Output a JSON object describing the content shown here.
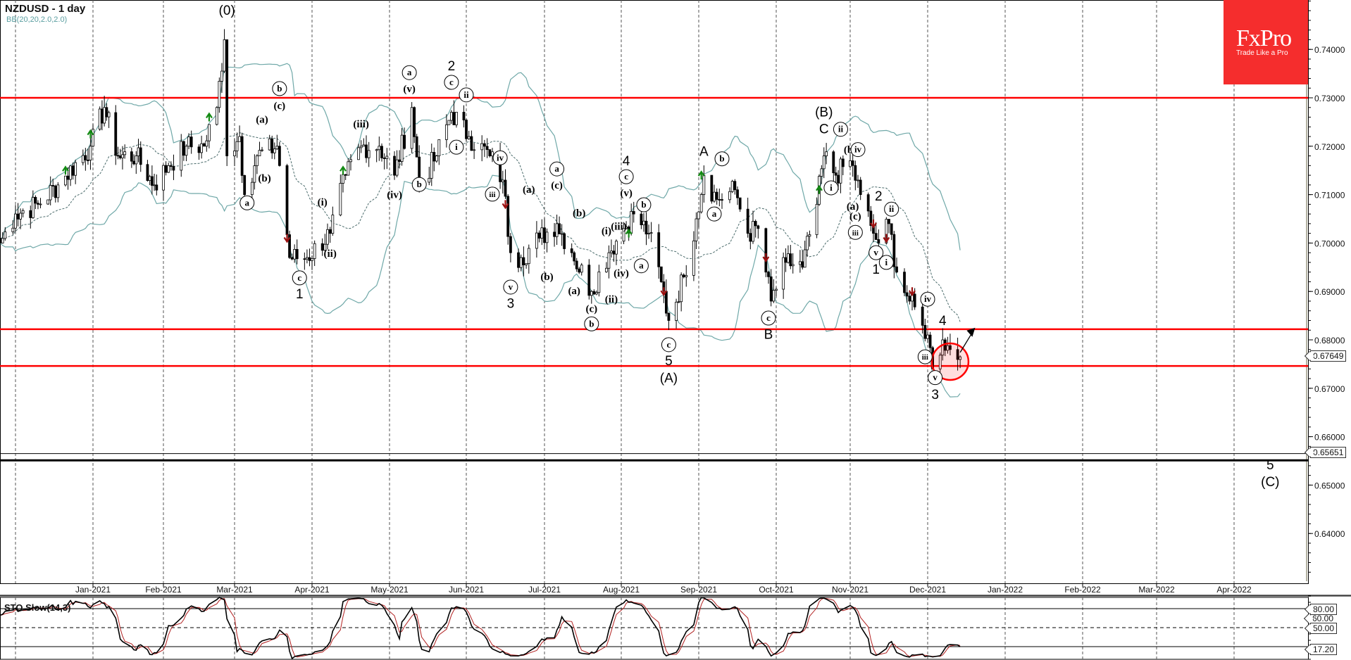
{
  "header": {
    "title": "NZDUSD - 1 day",
    "indicator": "BB(20,20,2.0,2.0)"
  },
  "logo": {
    "brand": "FxPro",
    "tagline": "Trade Like a Pro",
    "color": "#f52d2d"
  },
  "price_tags": {
    "last": "0.67649",
    "level": "0.65651"
  },
  "sto_panel": {
    "label": "STO Slow(14,3)",
    "levels": [
      "80.00",
      "60.00",
      "50.00",
      "17.20"
    ]
  },
  "colors": {
    "support_resistance": "#ff0000",
    "target": "#000000",
    "bands": "#6fa8a8",
    "stoch_k": "#000000",
    "stoch_d": "#b22222",
    "signal_up": "#138a13",
    "signal_down": "#9b1010"
  },
  "chart_data": {
    "type": "candlestick",
    "symbol": "NZDUSD",
    "timeframe": "1 day",
    "ylim": [
      0.632,
      0.752
    ],
    "y_ticks": [
      "0.74000",
      "0.73000",
      "0.72000",
      "0.71000",
      "0.70000",
      "0.69000",
      "0.68000",
      "0.67000",
      "0.66000",
      "0.65000",
      "0.64000"
    ],
    "x_ticks": [
      "Jan-2021",
      "Feb-2021",
      "Mar-2021",
      "Apr-2021",
      "May-2021",
      "Jun-2021",
      "Jul-2021",
      "Aug-2021",
      "Sep-2021",
      "Oct-2021",
      "Nov-2021",
      "Dec-2021",
      "Jan-2022",
      "Feb-2022",
      "Mar-2022",
      "Apr-2022"
    ],
    "close_keypoints": [
      [
        "2020-11-25",
        0.7
      ],
      [
        "2020-12-01",
        0.706
      ],
      [
        "2020-12-10",
        0.708
      ],
      [
        "2020-12-18",
        0.712
      ],
      [
        "2020-12-31",
        0.72
      ],
      [
        "2021-01-06",
        0.728
      ],
      [
        "2021-01-12",
        0.718
      ],
      [
        "2021-01-20",
        0.718
      ],
      [
        "2021-01-28",
        0.712
      ],
      [
        "2021-02-03",
        0.716
      ],
      [
        "2021-02-10",
        0.72
      ],
      [
        "2021-02-17",
        0.72
      ],
      [
        "2021-02-22",
        0.728
      ],
      [
        "2021-02-25",
        0.742
      ],
      [
        "2021-02-26",
        0.718
      ],
      [
        "2021-03-03",
        0.722
      ],
      [
        "2021-03-05",
        0.71
      ],
      [
        "2021-03-10",
        0.718
      ],
      [
        "2021-03-18",
        0.72
      ],
      [
        "2021-03-19",
        0.716
      ],
      [
        "2021-03-23",
        0.697
      ],
      [
        "2021-03-30",
        0.697
      ],
      [
        "2021-04-08",
        0.702
      ],
      [
        "2021-04-14",
        0.714
      ],
      [
        "2021-04-20",
        0.72
      ],
      [
        "2021-04-27",
        0.72
      ],
      [
        "2021-05-03",
        0.714
      ],
      [
        "2021-05-10",
        0.728
      ],
      [
        "2021-05-13",
        0.712
      ],
      [
        "2021-05-20",
        0.718
      ],
      [
        "2021-05-26",
        0.727
      ],
      [
        "2021-06-02",
        0.722
      ],
      [
        "2021-06-10",
        0.718
      ],
      [
        "2021-06-15",
        0.713
      ],
      [
        "2021-06-18",
        0.698
      ],
      [
        "2021-06-22",
        0.697
      ],
      [
        "2021-06-29",
        0.701
      ],
      [
        "2021-07-06",
        0.704
      ],
      [
        "2021-07-12",
        0.698
      ],
      [
        "2021-07-20",
        0.69
      ],
      [
        "2021-07-27",
        0.698
      ],
      [
        "2021-08-02",
        0.703
      ],
      [
        "2021-08-06",
        0.706
      ],
      [
        "2021-08-12",
        0.702
      ],
      [
        "2021-08-17",
        0.692
      ],
      [
        "2021-08-20",
        0.684
      ],
      [
        "2021-08-26",
        0.693
      ],
      [
        "2021-08-31",
        0.705
      ],
      [
        "2021-09-03",
        0.714
      ],
      [
        "2021-09-08",
        0.709
      ],
      [
        "2021-09-15",
        0.711
      ],
      [
        "2021-09-20",
        0.702
      ],
      [
        "2021-09-24",
        0.703
      ],
      [
        "2021-09-29",
        0.688
      ],
      [
        "2021-10-05",
        0.696
      ],
      [
        "2021-10-12",
        0.695
      ],
      [
        "2021-10-18",
        0.708
      ],
      [
        "2021-10-21",
        0.718
      ],
      [
        "2021-10-26",
        0.714
      ],
      [
        "2021-11-01",
        0.717
      ],
      [
        "2021-11-05",
        0.71
      ],
      [
        "2021-11-10",
        0.702
      ],
      [
        "2021-11-12",
        0.7
      ],
      [
        "2021-11-16",
        0.704
      ],
      [
        "2021-11-19",
        0.694
      ],
      [
        "2021-11-24",
        0.688
      ],
      [
        "2021-11-29",
        0.683
      ],
      [
        "2021-12-01",
        0.681
      ],
      [
        "2021-12-03",
        0.674
      ],
      [
        "2021-12-07",
        0.68
      ],
      [
        "2021-12-10",
        0.678
      ],
      [
        "2021-12-14",
        0.67649
      ]
    ],
    "horizontal_lines": [
      {
        "price": 0.73,
        "color": "#ff0000",
        "kind": "resistance"
      },
      {
        "price": 0.6822,
        "color": "#ff0000",
        "kind": "resistance"
      },
      {
        "price": 0.6746,
        "color": "#ff0000",
        "kind": "support"
      },
      {
        "price": 0.6551,
        "color": "#000000",
        "kind": "target"
      },
      {
        "price": 0.65651,
        "color": "#000000",
        "kind": "level"
      }
    ],
    "wave_labels": [
      {
        "text": "(0)",
        "style": "plain",
        "date": "2021-02-26",
        "price": 0.7482
      },
      {
        "text": "b",
        "style": "circled",
        "date": "2021-03-19",
        "price": 0.7319
      },
      {
        "text": "(c)",
        "style": "paren",
        "date": "2021-03-19",
        "price": 0.7284
      },
      {
        "text": "(a)",
        "style": "paren",
        "date": "2021-03-12",
        "price": 0.7256
      },
      {
        "text": "(b)",
        "style": "paren",
        "date": "2021-03-13",
        "price": 0.7134
      },
      {
        "text": "a",
        "style": "circled",
        "date": "2021-03-06",
        "price": 0.7083
      },
      {
        "text": "c",
        "style": "circled",
        "date": "2021-03-27",
        "price": 0.6928
      },
      {
        "text": "1",
        "style": "plain",
        "date": "2021-03-27",
        "price": 0.6896
      },
      {
        "text": "(i)",
        "style": "paren",
        "date": "2021-04-05",
        "price": 0.7085
      },
      {
        "text": "(ii)",
        "style": "paren",
        "date": "2021-04-08",
        "price": 0.6979
      },
      {
        "text": "(iii)",
        "style": "paren",
        "date": "2021-04-20",
        "price": 0.7246
      },
      {
        "text": "(iv)",
        "style": "paren",
        "date": "2021-05-03",
        "price": 0.71
      },
      {
        "text": "a",
        "style": "circled",
        "date": "2021-05-09",
        "price": 0.7352
      },
      {
        "text": "(v)",
        "style": "paren",
        "date": "2021-05-09",
        "price": 0.7319
      },
      {
        "text": "b",
        "style": "circled",
        "date": "2021-05-13",
        "price": 0.7121
      },
      {
        "text": "2",
        "style": "plain",
        "date": "2021-05-26",
        "price": 0.7367
      },
      {
        "text": "c",
        "style": "circled",
        "date": "2021-05-26",
        "price": 0.7332
      },
      {
        "text": "ii",
        "style": "circled",
        "date": "2021-06-01",
        "price": 0.7306
      },
      {
        "text": "i",
        "style": "circled",
        "date": "2021-05-28",
        "price": 0.7198
      },
      {
        "text": "iv",
        "style": "circled",
        "date": "2021-06-14",
        "price": 0.7176
      },
      {
        "text": "iii",
        "style": "circled",
        "date": "2021-06-11",
        "price": 0.7101
      },
      {
        "text": "v",
        "style": "circled",
        "date": "2021-06-18",
        "price": 0.6909
      },
      {
        "text": "3",
        "style": "plain",
        "date": "2021-06-18",
        "price": 0.6876
      },
      {
        "text": "(a)",
        "style": "paren",
        "date": "2021-06-25",
        "price": 0.7111
      },
      {
        "text": "a",
        "style": "circled",
        "date": "2021-07-06",
        "price": 0.7153
      },
      {
        "text": "(c)",
        "style": "paren",
        "date": "2021-07-06",
        "price": 0.712
      },
      {
        "text": "(b)",
        "style": "paren",
        "date": "2021-07-02",
        "price": 0.6931
      },
      {
        "text": "(a)",
        "style": "paren",
        "date": "2021-07-13",
        "price": 0.6902
      },
      {
        "text": "(b)",
        "style": "paren",
        "date": "2021-07-15",
        "price": 0.7062
      },
      {
        "text": "(c)",
        "style": "paren",
        "date": "2021-07-20",
        "price": 0.6865
      },
      {
        "text": "b",
        "style": "circled",
        "date": "2021-07-20",
        "price": 0.6833
      },
      {
        "text": "(i)",
        "style": "paren",
        "date": "2021-07-26",
        "price": 0.7025
      },
      {
        "text": "(ii)",
        "style": "paren",
        "date": "2021-07-28",
        "price": 0.6884
      },
      {
        "text": "(iii)",
        "style": "paren",
        "date": "2021-07-31",
        "price": 0.7035
      },
      {
        "text": "(iv)",
        "style": "paren",
        "date": "2021-08-01",
        "price": 0.6938
      },
      {
        "text": "4",
        "style": "plain",
        "date": "2021-08-03",
        "price": 0.7171
      },
      {
        "text": "c",
        "style": "circled",
        "date": "2021-08-03",
        "price": 0.7137
      },
      {
        "text": "(v)",
        "style": "paren",
        "date": "2021-08-03",
        "price": 0.7104
      },
      {
        "text": "b",
        "style": "circled",
        "date": "2021-08-10",
        "price": 0.7079
      },
      {
        "text": "a",
        "style": "circled",
        "date": "2021-08-09",
        "price": 0.6953
      },
      {
        "text": "c",
        "style": "circled",
        "date": "2021-08-20",
        "price": 0.679
      },
      {
        "text": "5",
        "style": "plain",
        "date": "2021-08-20",
        "price": 0.6758
      },
      {
        "text": "(A)",
        "style": "plain",
        "date": "2021-08-20",
        "price": 0.6722
      },
      {
        "text": "A",
        "style": "plain",
        "date": "2021-09-03",
        "price": 0.719
      },
      {
        "text": "b",
        "style": "circled",
        "date": "2021-09-10",
        "price": 0.7174
      },
      {
        "text": "a",
        "style": "circled",
        "date": "2021-09-07",
        "price": 0.706
      },
      {
        "text": "c",
        "style": "circled",
        "date": "2021-09-28",
        "price": 0.6845
      },
      {
        "text": "B",
        "style": "plain",
        "date": "2021-09-28",
        "price": 0.6812
      },
      {
        "text": "(B)",
        "style": "plain",
        "date": "2021-10-21",
        "price": 0.7272
      },
      {
        "text": "C",
        "style": "plain",
        "date": "2021-10-21",
        "price": 0.7237
      },
      {
        "text": "ii",
        "style": "circled",
        "date": "2021-10-28",
        "price": 0.7235
      },
      {
        "text": "i",
        "style": "circled",
        "date": "2021-10-24",
        "price": 0.7114
      },
      {
        "text": "(b)",
        "style": "paren",
        "date": "2021-11-01",
        "price": 0.7193
      },
      {
        "text": "iv",
        "style": "circled",
        "date": "2021-11-04",
        "price": 0.7193
      },
      {
        "text": "(a)",
        "style": "paren",
        "date": "2021-11-02",
        "price": 0.7076
      },
      {
        "text": "(c)",
        "style": "paren",
        "date": "2021-11-03",
        "price": 0.7056
      },
      {
        "text": "iii",
        "style": "circled",
        "date": "2021-11-03",
        "price": 0.7022
      },
      {
        "text": "2",
        "style": "plain",
        "date": "2021-11-12",
        "price": 0.7098
      },
      {
        "text": "ii",
        "style": "circled",
        "date": "2021-11-17",
        "price": 0.707
      },
      {
        "text": "v",
        "style": "circled",
        "date": "2021-11-11",
        "price": 0.698
      },
      {
        "text": "i",
        "style": "circled",
        "date": "2021-11-15",
        "price": 0.696
      },
      {
        "text": "1",
        "style": "plain",
        "date": "2021-11-11",
        "price": 0.6947
      },
      {
        "text": "iv",
        "style": "circled",
        "date": "2021-12-01",
        "price": 0.6884
      },
      {
        "text": "4",
        "style": "plain",
        "date": "2021-12-07",
        "price": 0.6841
      },
      {
        "text": "iii",
        "style": "circled",
        "date": "2021-11-30",
        "price": 0.6765
      },
      {
        "text": "v",
        "style": "circled",
        "date": "2021-12-04",
        "price": 0.6722
      },
      {
        "text": "3",
        "style": "plain",
        "date": "2021-12-04",
        "price": 0.6688
      },
      {
        "text": "5",
        "style": "plain",
        "date": "2022-04-15",
        "price": 0.6543
      },
      {
        "text": "(C)",
        "style": "plain",
        "date": "2022-04-15",
        "price": 0.6508
      }
    ],
    "signals": [
      {
        "dir": "up",
        "date": "2020-12-21",
        "price": 0.715
      },
      {
        "dir": "up",
        "date": "2020-12-31",
        "price": 0.7225
      },
      {
        "dir": "up",
        "date": "2021-02-19",
        "price": 0.726
      },
      {
        "dir": "down",
        "date": "2021-03-22",
        "price": 0.701
      },
      {
        "dir": "up",
        "date": "2021-04-13",
        "price": 0.715
      },
      {
        "dir": "down",
        "date": "2021-06-16",
        "price": 0.708
      },
      {
        "dir": "up",
        "date": "2021-08-04",
        "price": 0.702
      },
      {
        "dir": "down",
        "date": "2021-08-18",
        "price": 0.69
      },
      {
        "dir": "up",
        "date": "2021-09-02",
        "price": 0.714
      },
      {
        "dir": "down",
        "date": "2021-09-27",
        "price": 0.697
      },
      {
        "dir": "up",
        "date": "2021-10-19",
        "price": 0.711
      },
      {
        "dir": "down",
        "date": "2021-11-10",
        "price": 0.704
      },
      {
        "dir": "down",
        "date": "2021-11-15",
        "price": 0.701
      },
      {
        "dir": "down",
        "date": "2021-11-25",
        "price": 0.69
      }
    ],
    "highlight": {
      "date": "2021-12-10",
      "price": 0.6755
    },
    "projection_arrow": {
      "from": {
        "date": "2021-12-14",
        "price": 0.6774
      },
      "to": {
        "date": "2021-12-20",
        "price": 0.6825
      }
    },
    "stochastic": {
      "k_period": 14,
      "slowing": 3,
      "levels": [
        80,
        50,
        20
      ],
      "ylim": [
        0,
        100
      ],
      "last": 17.2
    }
  }
}
